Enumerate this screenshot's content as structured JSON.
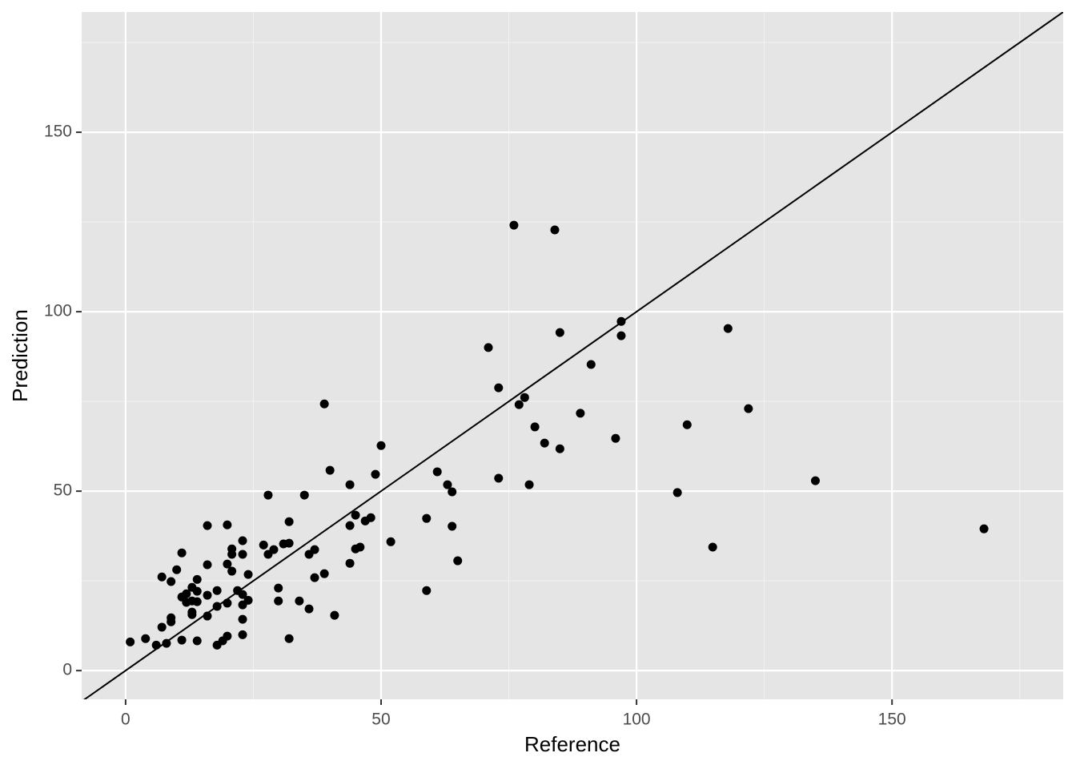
{
  "chart_data": {
    "type": "scatter",
    "x_label": "Reference",
    "y_label": "Prediction",
    "x": [
      0.9,
      3.9,
      6.0,
      8.0,
      7.1,
      8.9,
      8.9,
      11.0,
      14.0,
      7.1,
      8.9,
      10.0,
      11.0,
      11.0,
      11.9,
      11.9,
      13.0,
      13.0,
      13.0,
      13.0,
      14.0,
      14.0,
      14.0,
      16.0,
      16.0,
      16.0,
      16.0,
      17.9,
      17.9,
      17.9,
      19.0,
      19.9,
      19.9,
      19.9,
      19.9,
      20.8,
      20.8,
      20.8,
      21.9,
      22.9,
      22.9,
      22.9,
      22.9,
      22.9,
      22.9,
      24.0,
      24.0,
      27.0,
      27.9,
      27.9,
      29.0,
      29.9,
      29.9,
      30.9,
      32.0,
      32.0,
      32.0,
      34.0,
      35.0,
      35.9,
      35.9,
      37.0,
      37.0,
      38.9,
      38.9,
      40.0,
      40.9,
      43.9,
      43.9,
      43.9,
      45.0,
      45.0,
      45.9,
      46.9,
      48.0,
      48.9,
      50.0,
      51.9,
      58.9,
      58.9,
      61.0,
      63.0,
      63.9,
      63.9,
      65.0,
      71.0,
      73.0,
      73.0,
      76.0,
      77.0,
      78.1,
      79.0,
      80.1,
      82.0,
      84.0,
      85.0,
      85.0,
      89.0,
      91.1,
      95.9,
      97.0,
      97.0,
      108.0,
      109.9,
      114.9,
      117.9,
      121.9,
      135.0,
      168.0
    ],
    "series": [
      {
        "color": "#000000",
        "values": [
          8.0,
          8.9,
          7.1,
          7.6,
          12.1,
          14.7,
          13.6,
          8.5,
          8.3,
          26.1,
          24.8,
          28.1,
          32.8,
          20.5,
          21.4,
          19.0,
          23.2,
          19.4,
          16.3,
          15.6,
          25.4,
          22.1,
          19.2,
          40.4,
          29.5,
          21.0,
          15.2,
          17.9,
          22.3,
          7.1,
          8.3,
          9.6,
          40.6,
          29.7,
          18.8,
          33.9,
          32.4,
          27.7,
          22.3,
          36.2,
          32.4,
          21.2,
          18.3,
          14.3,
          10.0,
          26.8,
          19.6,
          35.0,
          48.9,
          32.4,
          33.7,
          23.0,
          19.4,
          35.3,
          41.5,
          35.5,
          8.9,
          19.4,
          48.9,
          32.4,
          17.2,
          33.7,
          25.9,
          74.3,
          27.0,
          55.8,
          15.4,
          51.8,
          40.4,
          29.9,
          43.3,
          33.9,
          34.4,
          41.7,
          42.6,
          54.7,
          62.7,
          35.9,
          42.4,
          22.3,
          55.4,
          51.8,
          49.8,
          40.2,
          30.6,
          90.0,
          78.8,
          53.6,
          124.1,
          74.1,
          76.1,
          51.8,
          67.9,
          63.4,
          122.8,
          94.2,
          61.8,
          71.7,
          85.3,
          64.7,
          97.3,
          93.3,
          49.6,
          68.5,
          34.4,
          95.3,
          73.0,
          52.9,
          39.5
        ]
      }
    ],
    "xlim": [
      -8.6,
      183.5
    ],
    "ylim": [
      -8.0,
      183.5
    ],
    "xticks": [
      0,
      50,
      100,
      150
    ],
    "yticks": [
      0,
      50,
      100,
      150
    ],
    "grid": true,
    "minor_grid": true,
    "identity_line": true
  }
}
